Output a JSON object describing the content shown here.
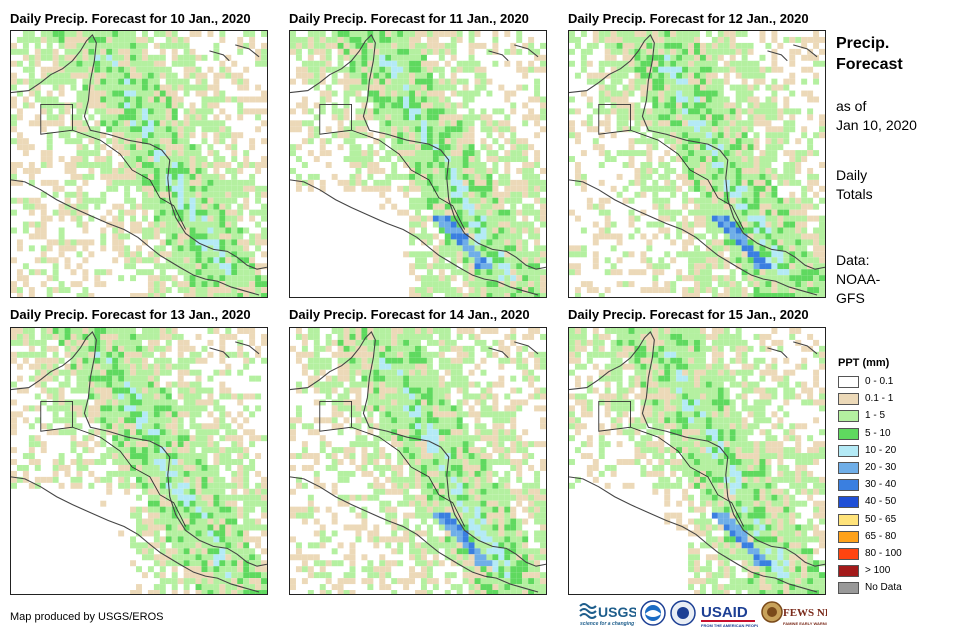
{
  "panels": [
    {
      "title": "Daily Precip. Forecast for 10 Jan., 2020"
    },
    {
      "title": "Daily Precip. Forecast for 11 Jan., 2020"
    },
    {
      "title": "Daily Precip. Forecast for 12 Jan., 2020"
    },
    {
      "title": "Daily Precip. Forecast for 13 Jan., 2020"
    },
    {
      "title": "Daily Precip. Forecast for 14 Jan., 2020"
    },
    {
      "title": "Daily Precip. Forecast for 15 Jan., 2020"
    }
  ],
  "side": {
    "title_line1": "Precip.",
    "title_line2": "Forecast",
    "asof_line1": "as of",
    "asof_line2": "Jan 10, 2020",
    "totals_line1": "Daily",
    "totals_line2": "Totals",
    "data_line1": "Data:",
    "data_line2": "NOAA-",
    "data_line3": "GFS"
  },
  "legend": {
    "title": "PPT (mm)",
    "items": [
      {
        "label": "0 - 0.1",
        "color": "#ffffff"
      },
      {
        "label": "0.1 - 1",
        "color": "#ecd9b8"
      },
      {
        "label": "1 - 5",
        "color": "#b4f0a0"
      },
      {
        "label": "5 - 10",
        "color": "#5fd95f"
      },
      {
        "label": "10 - 20",
        "color": "#b4eaf6"
      },
      {
        "label": "20 - 30",
        "color": "#6faee8"
      },
      {
        "label": "30 - 40",
        "color": "#3a7fe0"
      },
      {
        "label": "40 - 50",
        "color": "#1f4fd6"
      },
      {
        "label": "50 - 65",
        "color": "#ffe37a"
      },
      {
        "label": "65 - 80",
        "color": "#ffa21a"
      },
      {
        "label": "80 - 100",
        "color": "#ff4410"
      },
      {
        "label": "> 100",
        "color": "#a31a1a"
      },
      {
        "label": "No Data",
        "color": "#999999"
      }
    ]
  },
  "footer": {
    "credit": "Map produced by USGS/EROS",
    "logo_usgs": "USGS",
    "logo_usaid": "USAID",
    "logo_fewsnet": "FEWS NET"
  }
}
